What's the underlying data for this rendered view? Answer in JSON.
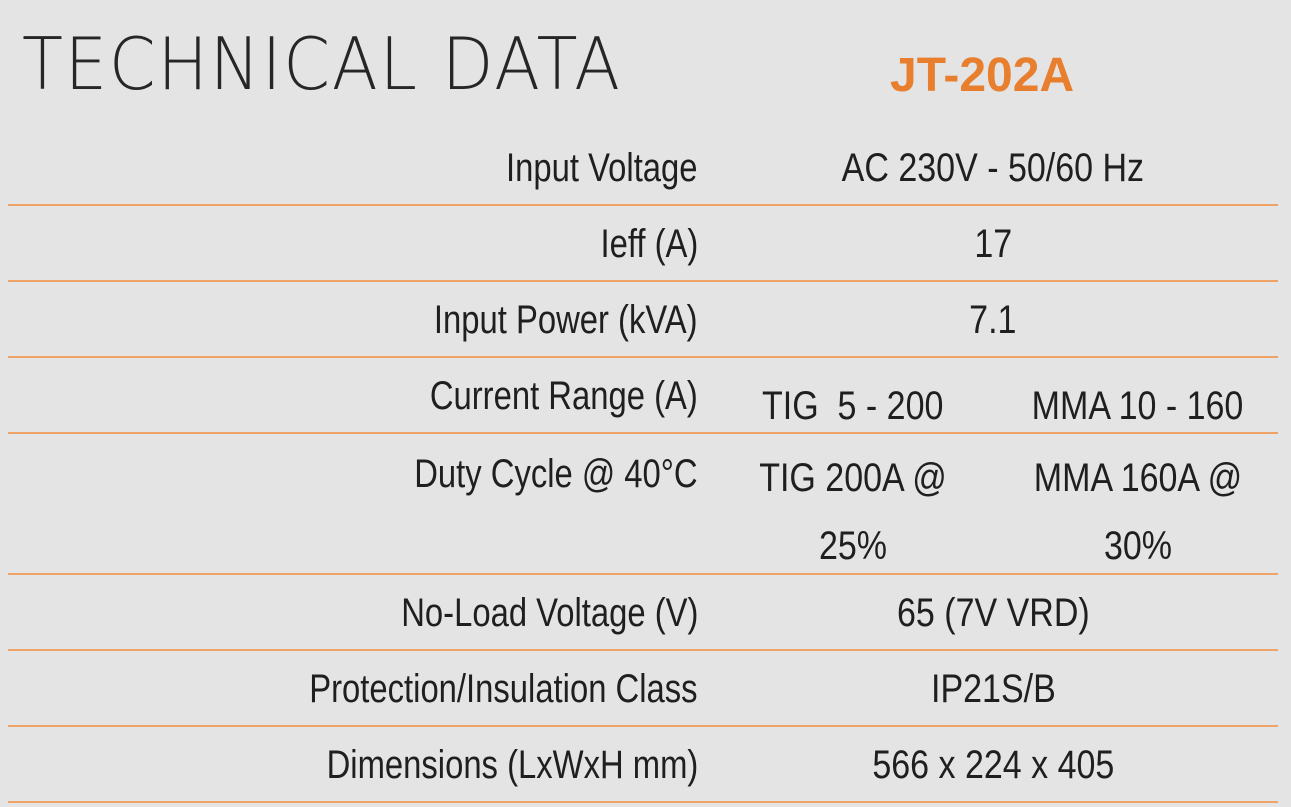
{
  "title": "TECHNICAL DATA",
  "model": "JT-202A",
  "rows": [
    {
      "label": "Input Voltage",
      "value": "AC 230V - 50/60 Hz"
    },
    {
      "label": "Ieff (A)",
      "value": "17"
    },
    {
      "label": "Input Power (kVA)",
      "value": "7.1"
    },
    {
      "label": "Current Range (A)",
      "tig": "TIG  5 - 200",
      "mma": "MMA 10 - 160"
    },
    {
      "label": "Duty Cycle @ 40°C",
      "tig_line1": "TIG 200A @",
      "tig_line2": "25%",
      "mma_line1": "MMA 160A @",
      "mma_line2": "30%"
    },
    {
      "label": "No-Load Voltage (V)",
      "value": "65 (7V VRD)"
    },
    {
      "label": "Protection/Insulation Class",
      "value": "IP21S/B"
    },
    {
      "label": "Dimensions (LxWxH mm)",
      "value": "566 x 224 x 405"
    }
  ],
  "colors": {
    "accent": "#e87f2f",
    "divider": "#efa266",
    "background": "#e4e4e4"
  }
}
